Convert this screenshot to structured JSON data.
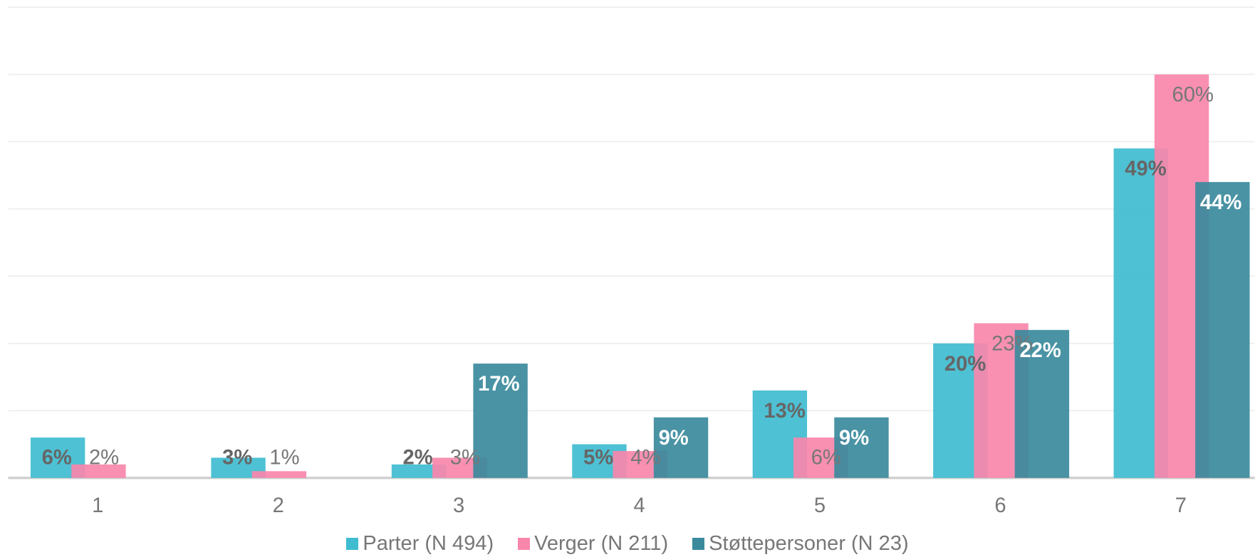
{
  "chart_data": {
    "type": "bar",
    "categories": [
      "1",
      "2",
      "3",
      "4",
      "5",
      "6",
      "7"
    ],
    "series": [
      {
        "name": "Parter (N 494)",
        "color": "#3fbcd0",
        "values": [
          6,
          3,
          2,
          5,
          13,
          20,
          49
        ],
        "value_labels": [
          "6%",
          "3%",
          "2%",
          "5%",
          "13%",
          "20%",
          "49%"
        ]
      },
      {
        "name": "Verger (N 211)",
        "color": "#f987ab",
        "values": [
          2,
          1,
          3,
          4,
          6,
          23,
          60
        ],
        "value_labels": [
          "2%",
          "1%",
          "3%",
          "4%",
          "6%",
          "23%",
          "60%"
        ]
      },
      {
        "name": "Støttepersoner (N 23)",
        "color": "#3a8a9c",
        "values": [
          null,
          null,
          17,
          9,
          9,
          22,
          44
        ],
        "value_labels": [
          null,
          null,
          "17%",
          "9%",
          "9%",
          "22%",
          "44%"
        ]
      }
    ],
    "ylim": [
      0,
      70
    ],
    "yticks": [
      0,
      10,
      20,
      30,
      40,
      50,
      60,
      70
    ],
    "grid": true
  }
}
